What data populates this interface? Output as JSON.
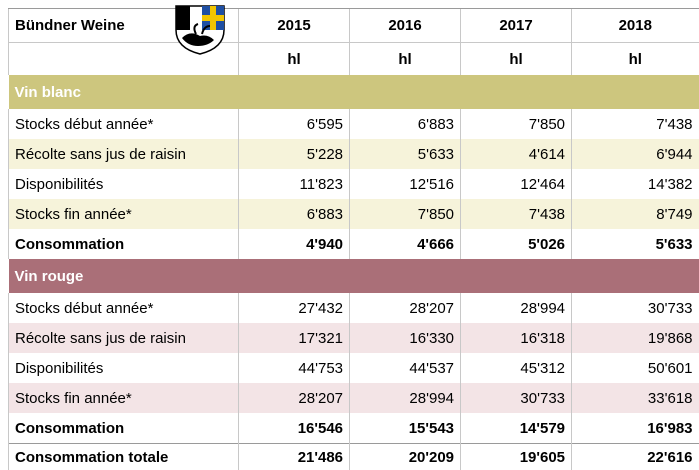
{
  "header": {
    "title": "Bündner Weine",
    "years": [
      "2015",
      "2016",
      "2017",
      "2018"
    ],
    "unit": "hl"
  },
  "sections": [
    {
      "name": "Vin blanc",
      "band": "#cdc67e",
      "stripe": "#f6f3da",
      "rows": [
        {
          "label": "Stocks début année*",
          "values": [
            "6'595",
            "6'883",
            "7'850",
            "7'438"
          ]
        },
        {
          "label": "Récolte sans jus de raisin",
          "values": [
            "5'228",
            "5'633",
            "4'614",
            "6'944"
          ]
        },
        {
          "label": "Disponibilités",
          "values": [
            "11'823",
            "12'516",
            "12'464",
            "14'382"
          ]
        },
        {
          "label": "Stocks fin année*",
          "values": [
            "6'883",
            "7'850",
            "7'438",
            "8'749"
          ]
        },
        {
          "label": "Consommation",
          "values": [
            "4'940",
            "4'666",
            "5'026",
            "5'633"
          ]
        }
      ]
    },
    {
      "name": "Vin rouge",
      "band": "#aa6f78",
      "stripe": "#f3e4e6",
      "rows": [
        {
          "label": "Stocks début année*",
          "values": [
            "27'432",
            "28'207",
            "28'994",
            "30'733"
          ]
        },
        {
          "label": "Récolte sans jus de raisin",
          "values": [
            "17'321",
            "16'330",
            "16'318",
            "19'868"
          ]
        },
        {
          "label": "Disponibilités",
          "values": [
            "44'753",
            "44'537",
            "45'312",
            "50'601"
          ]
        },
        {
          "label": "Stocks fin année*",
          "values": [
            "28'207",
            "28'994",
            "30'733",
            "33'618"
          ]
        },
        {
          "label": "Consommation",
          "values": [
            "16'546",
            "15'543",
            "14'579",
            "16'983"
          ]
        }
      ]
    }
  ],
  "total": {
    "label": "Consommation totale",
    "values": [
      "21'486",
      "20'209",
      "19'605",
      "22'616"
    ]
  }
}
